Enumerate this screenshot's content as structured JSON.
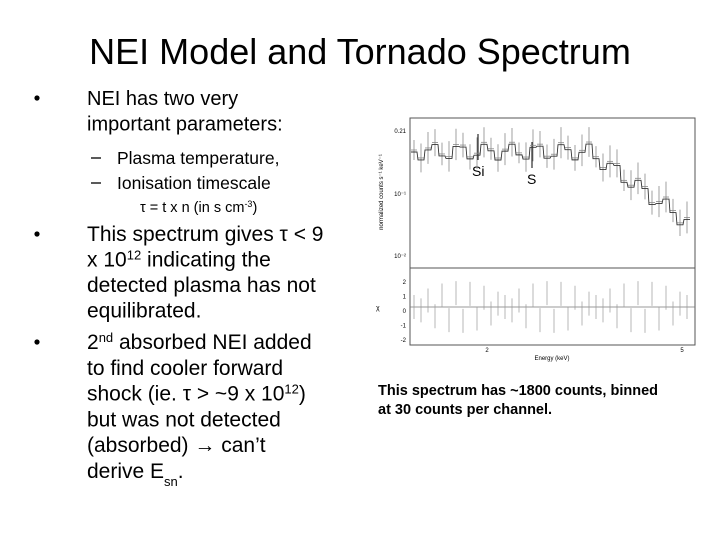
{
  "title": "NEI Model and Tornado Spectrum",
  "bullets": [
    {
      "lines": [
        [
          {
            "t": "NEI has two very"
          }
        ],
        [
          {
            "t": "important parameters:"
          }
        ]
      ],
      "sub_bullets": [
        "Plasma temperature,",
        "Ionisation timescale"
      ],
      "formula": [
        {
          "t": "τ = t x n (in s cm"
        },
        {
          "sup": "-3"
        },
        {
          "t": ")"
        }
      ]
    },
    {
      "lines": [
        [
          {
            "t": "This spectrum gives τ < 9"
          }
        ],
        [
          {
            "t": "x 10"
          },
          {
            "sup": "12"
          },
          {
            "t": " indicating the"
          }
        ],
        [
          {
            "t": "detected plasma has not"
          }
        ],
        [
          {
            "t": "equilibrated."
          }
        ]
      ]
    },
    {
      "lines": [
        [
          {
            "t": "2"
          },
          {
            "sup": "nd"
          },
          {
            "t": " absorbed NEI added"
          }
        ],
        [
          {
            "t": "to find cooler forward"
          }
        ],
        [
          {
            "t": "shock (ie. τ > ~9 x 10"
          },
          {
            "sup": "12"
          },
          {
            "t": ")"
          }
        ],
        [
          {
            "t": "but was not detected"
          }
        ],
        [
          {
            "t": "(absorbed) → can’t"
          }
        ],
        [
          {
            "t": "derive E"
          },
          {
            "sub": "sn"
          },
          {
            "t": "."
          }
        ]
      ]
    }
  ],
  "figure": {
    "line_labels": [
      "Si",
      "S"
    ],
    "y_axis_label": "normalized counts s⁻¹ keV⁻¹",
    "y_ticks": [
      "0.21",
      "10⁻¹",
      "10⁻²"
    ],
    "residual_label": "χ",
    "residual_ticks": [
      "2",
      "1",
      "0",
      "-1",
      "-2"
    ],
    "x_ticks": [
      "2",
      "5"
    ],
    "x_axis_label": "Energy (keV)"
  },
  "caption": [
    "This spectrum has ~1800 counts, binned",
    "at 30 counts per channel."
  ]
}
